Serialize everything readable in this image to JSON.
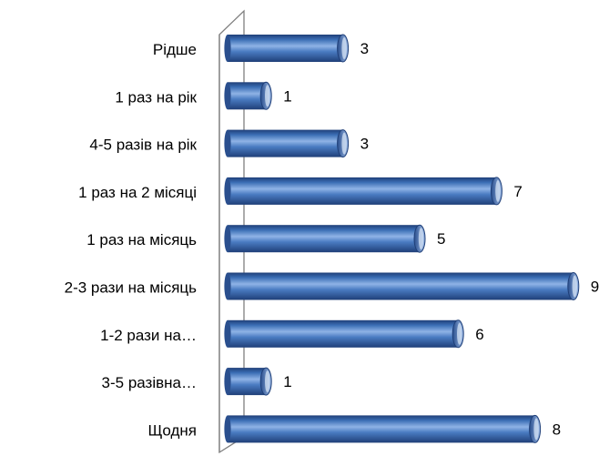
{
  "chart_data": {
    "type": "bar",
    "orientation": "horizontal",
    "style": "3d-cylinder",
    "categories": [
      "Рідше",
      "1 раз на рік",
      "4-5 разів на рік",
      "1 раз на 2 місяці",
      "1 раз на місяць",
      "2-3 рази на місяць",
      "1-2 рази на…",
      "3-5 разівна…",
      "Щодня"
    ],
    "values": [
      3,
      1,
      3,
      7,
      5,
      9,
      6,
      1,
      8
    ],
    "title": "",
    "xlabel": "",
    "ylabel": "",
    "xlim": [
      0,
      9
    ],
    "grid": false,
    "legend": "none",
    "bar_color": "#3A6DB4",
    "bar_color_dark": "#1F3F78",
    "bar_color_light": "#8FB3E6",
    "axis_color": "#808080"
  }
}
